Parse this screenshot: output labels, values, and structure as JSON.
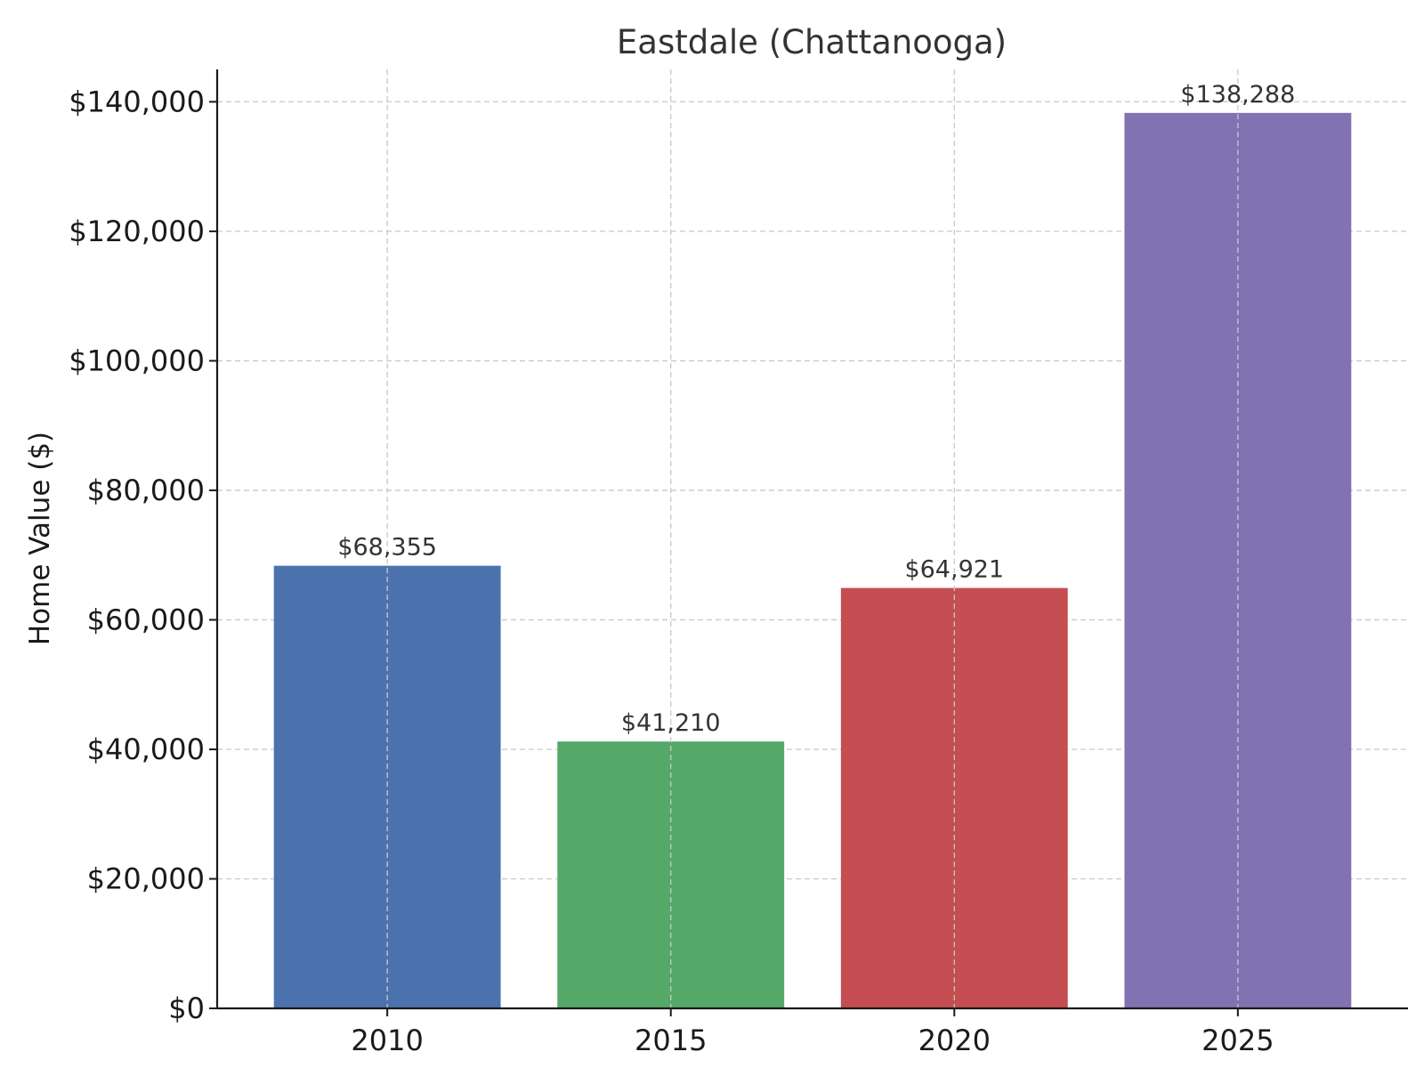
{
  "chart_data": {
    "type": "bar",
    "title": "Eastdale (Chattanooga)",
    "xlabel": "",
    "ylabel": "Home Value ($)",
    "categories": [
      "2010",
      "2015",
      "2020",
      "2025"
    ],
    "values": [
      68355,
      41210,
      64921,
      138288
    ],
    "value_labels": [
      "$68,355",
      "$41,210",
      "$64,921",
      "$138,288"
    ],
    "colors": [
      "#4c72ad",
      "#55a868",
      "#c44e52",
      "#8172b2"
    ],
    "ylim": [
      0,
      145000
    ],
    "yticks": [
      0,
      20000,
      40000,
      60000,
      80000,
      100000,
      120000,
      140000
    ],
    "ytick_labels": [
      "$0",
      "$20,000",
      "$40,000",
      "$60,000",
      "$80,000",
      "$100,000",
      "$120,000",
      "$140,000"
    ],
    "grid": true,
    "grid_style": "dashed"
  }
}
